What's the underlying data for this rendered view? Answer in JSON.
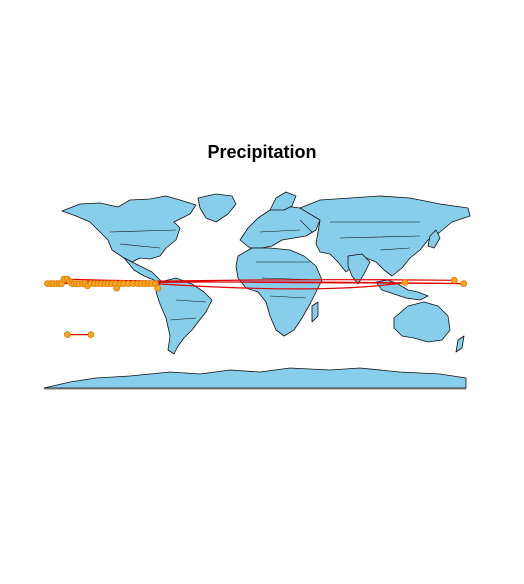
{
  "title": "Precipitation",
  "colors": {
    "land": "#87CEEB",
    "border": "#111111",
    "route": "#E00000",
    "point": "#F5A623"
  },
  "map": {
    "projection": "equirectangular",
    "points": [
      {
        "lon": -177,
        "lat": 5
      },
      {
        "lon": -174,
        "lat": 5
      },
      {
        "lon": -172,
        "lat": 5
      },
      {
        "lon": -169,
        "lat": 5
      },
      {
        "lon": -167,
        "lat": 5
      },
      {
        "lon": -165,
        "lat": 5
      },
      {
        "lon": -163,
        "lat": 9
      },
      {
        "lon": -160,
        "lat": 9
      },
      {
        "lon": -158,
        "lat": 7
      },
      {
        "lon": -156,
        "lat": 5
      },
      {
        "lon": -154,
        "lat": 5
      },
      {
        "lon": -152,
        "lat": 5
      },
      {
        "lon": -150,
        "lat": 5
      },
      {
        "lon": -147,
        "lat": 5
      },
      {
        "lon": -145,
        "lat": 5
      },
      {
        "lon": -143,
        "lat": 3
      },
      {
        "lon": -140,
        "lat": 5
      },
      {
        "lon": -137,
        "lat": 5
      },
      {
        "lon": -134,
        "lat": 5
      },
      {
        "lon": -131,
        "lat": 5
      },
      {
        "lon": -128,
        "lat": 5
      },
      {
        "lon": -125,
        "lat": 5
      },
      {
        "lon": -122,
        "lat": 5
      },
      {
        "lon": -119,
        "lat": 5
      },
      {
        "lon": -115,
        "lat": 5
      },
      {
        "lon": -112,
        "lat": 5
      },
      {
        "lon": -108,
        "lat": 5
      },
      {
        "lon": -104,
        "lat": 5
      },
      {
        "lon": -100,
        "lat": 5
      },
      {
        "lon": -97,
        "lat": 5
      },
      {
        "lon": -94,
        "lat": 5
      },
      {
        "lon": -91,
        "lat": 5
      },
      {
        "lon": -88,
        "lat": 5
      },
      {
        "lon": -85,
        "lat": 5
      },
      {
        "lon": -83,
        "lat": 1
      },
      {
        "lon": -118,
        "lat": 1
      },
      {
        "lon": -160,
        "lat": -41
      },
      {
        "lon": -140,
        "lat": -41
      },
      {
        "lon": 128,
        "lat": 6
      },
      {
        "lon": 170,
        "lat": 8
      },
      {
        "lon": 178,
        "lat": 5
      }
    ],
    "routes": [
      [
        [
          -177,
          5
        ],
        [
          -140,
          9
        ],
        [
          -83,
          7
        ]
      ],
      [
        [
          -160,
          9
        ],
        [
          -30,
          5
        ],
        [
          128,
          6
        ],
        [
          178,
          5
        ]
      ],
      [
        [
          -165,
          5
        ],
        [
          -10,
          10
        ],
        [
          170,
          8
        ]
      ],
      [
        [
          -85,
          5
        ],
        [
          60,
          -5
        ],
        [
          128,
          6
        ]
      ],
      [
        [
          -150,
          5
        ],
        [
          -20,
          8
        ],
        [
          178,
          5
        ]
      ],
      [
        [
          -160,
          -41
        ],
        [
          -140,
          -41
        ]
      ]
    ]
  }
}
